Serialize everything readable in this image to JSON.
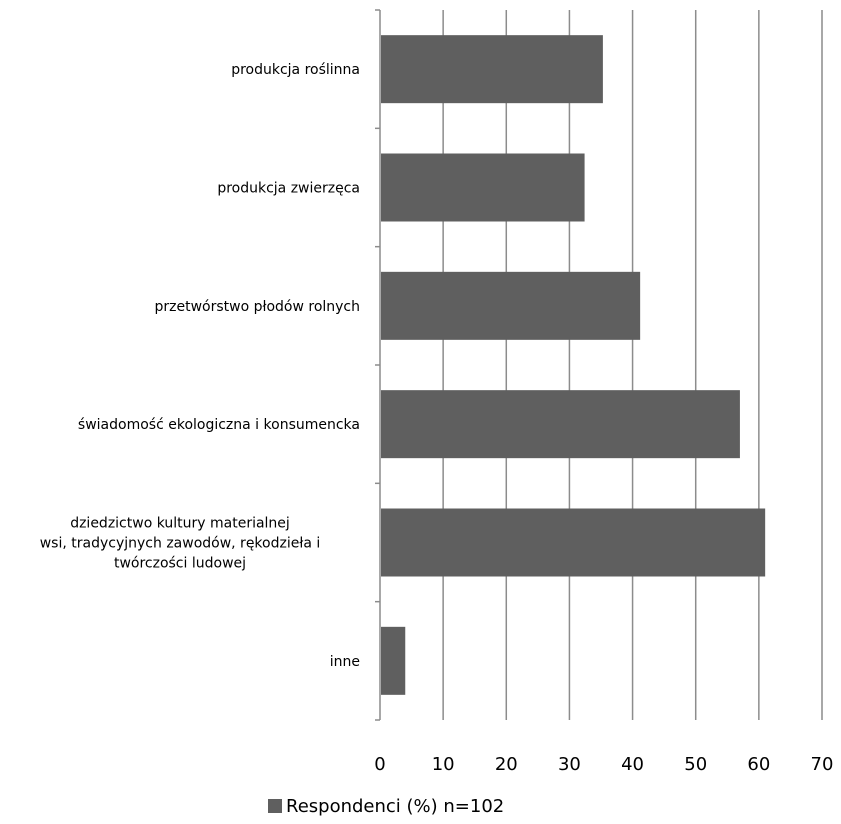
{
  "chart_data": {
    "type": "bar",
    "orientation": "horizontal",
    "categories": [
      "produkcja roślinna",
      "produkcja zwierzęca",
      "przetwórstwo płodów rolnych",
      "świadomość ekologiczna i konsumencka",
      "dziedzictwo kultury materialnej wsi, tradycyjnych zawodów, rękodzieła i twórczości ludowej",
      "inne"
    ],
    "category_lines": [
      [
        "produkcja roślinna"
      ],
      [
        "produkcja zwierzęca"
      ],
      [
        "przetwórstwo płodów rolnych"
      ],
      [
        "świadomość ekologiczna i konsumencka"
      ],
      [
        "dziedzictwo kultury materialnej",
        "wsi, tradycyjnych zawodów, rękodzieła i",
        "twórczości ludowej"
      ],
      [
        "inne"
      ]
    ],
    "series": [
      {
        "name": "Respondenci (%) n=102",
        "values": [
          35.3,
          32.4,
          41.2,
          57.0,
          61.0,
          4.0
        ]
      }
    ],
    "xlim": [
      0,
      70
    ],
    "xticks": [
      0,
      10,
      20,
      30,
      40,
      50,
      60,
      70
    ],
    "grid": true,
    "legend": "bottom",
    "colors": {
      "bar": "#5f5f5f",
      "grid": "#8c8c8c",
      "axis": "#8c8c8c"
    }
  }
}
